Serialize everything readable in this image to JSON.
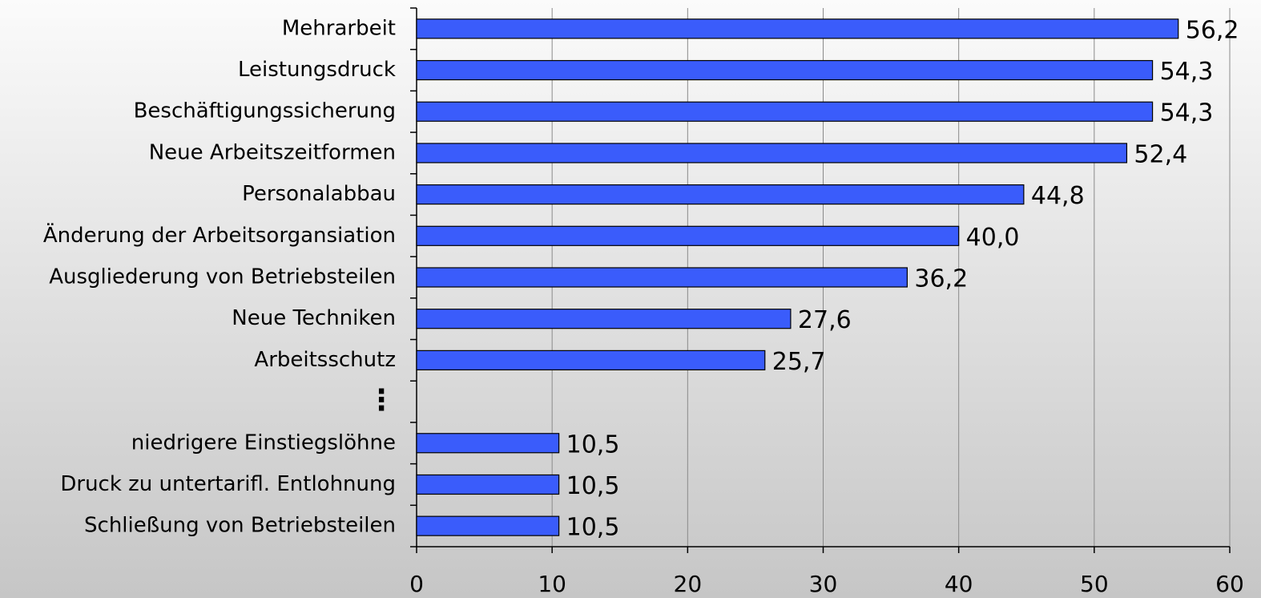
{
  "chart_data": {
    "type": "hbar",
    "categories": [
      "Mehrarbeit",
      "Leistungsdruck",
      "Beschäftigungssicherung",
      "Neue Arbeitszeitformen",
      "Personalabbau",
      "Änderung der Arbeitsorgansiation",
      "Ausgliederung von Betriebsteilen",
      "Neue Techniken",
      "Arbeitsschutz",
      "⋮",
      "niedrigere Einstiegslöhne",
      "Druck zu untertarifl. Entlohnung",
      "Schließung von Betriebsteilen"
    ],
    "values": [
      56.2,
      54.3,
      54.3,
      52.4,
      44.8,
      40.0,
      36.2,
      27.6,
      25.7,
      null,
      10.5,
      10.5,
      10.5
    ],
    "value_labels": [
      "56,2",
      "54,3",
      "54,3",
      "52,4",
      "44,8",
      "40,0",
      "36,2",
      "27,6",
      "25,7",
      null,
      "10,5",
      "10,5",
      "10,5"
    ],
    "color": "#3a5cfb",
    "xlim": [
      0,
      60
    ],
    "xticks": [
      0,
      10,
      20,
      30,
      40,
      50,
      60
    ],
    "grid": true
  }
}
